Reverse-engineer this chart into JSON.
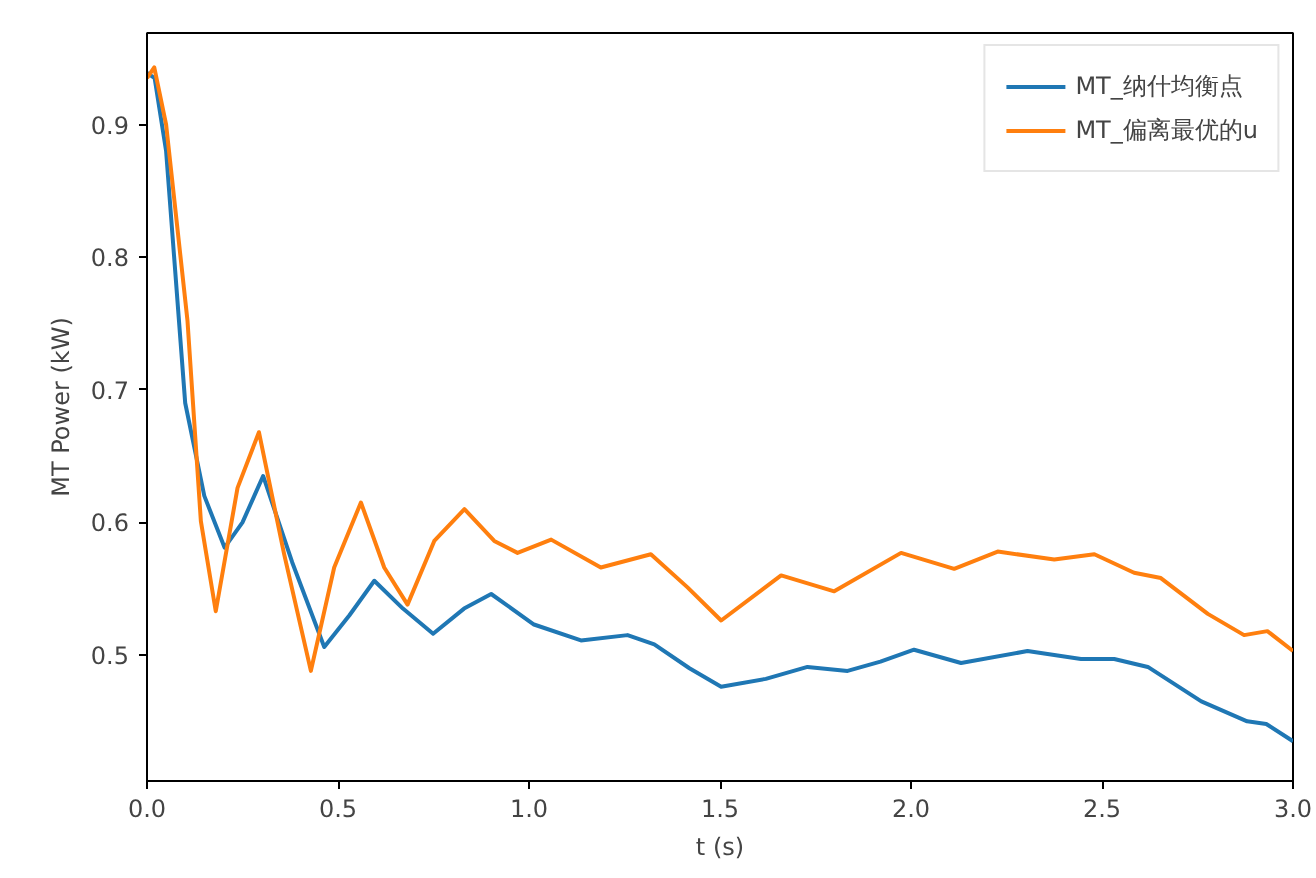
{
  "chart_data": {
    "type": "line",
    "xlabel": "t (s)",
    "ylabel": "MT Power (kW)",
    "xlim": [
      0,
      3.0
    ],
    "ylim": [
      0.405,
      0.969
    ],
    "xticks": [
      {
        "value": 0,
        "label": "0.0"
      },
      0.5,
      {
        "value": 1,
        "label": "1.0"
      },
      1.5,
      {
        "value": 2,
        "label": "2.0"
      },
      2.5,
      {
        "value": 3,
        "label": "3.0"
      }
    ],
    "yticks": [
      0.5,
      0.6,
      0.7,
      0.8,
      0.9
    ],
    "grid": false,
    "legend": "top right",
    "marker": "none",
    "line_style": "solid",
    "series": [
      {
        "name": "MT_纳什均衡点",
        "color": "#1f77b4",
        "x": [
          0,
          0.02,
          0.05,
          0.1,
          0.15,
          0.203,
          0.25,
          0.304,
          0.38,
          0.464,
          0.53,
          0.595,
          0.67,
          0.749,
          0.83,
          0.901,
          1.013,
          1.136,
          1.258,
          1.328,
          1.42,
          1.503,
          1.62,
          1.729,
          1.834,
          1.92,
          2.008,
          2.131,
          2.305,
          2.445,
          2.532,
          2.62,
          2.76,
          2.88,
          2.93,
          3.0
        ],
        "values": [
          0.939,
          0.935,
          0.88,
          0.69,
          0.62,
          0.581,
          0.6,
          0.635,
          0.57,
          0.506,
          0.53,
          0.556,
          0.535,
          0.516,
          0.535,
          0.546,
          0.523,
          0.511,
          0.515,
          0.508,
          0.49,
          0.476,
          0.482,
          0.491,
          0.488,
          0.495,
          0.504,
          0.494,
          0.503,
          0.497,
          0.497,
          0.491,
          0.465,
          0.45,
          0.448,
          0.435
        ]
      },
      {
        "name": "MT_偏离最优的u",
        "color": "#ff7f0e",
        "x": [
          0,
          0.019,
          0.05,
          0.106,
          0.141,
          0.18,
          0.237,
          0.293,
          0.359,
          0.429,
          0.49,
          0.56,
          0.621,
          0.682,
          0.752,
          0.831,
          0.909,
          0.97,
          1.058,
          1.188,
          1.319,
          1.415,
          1.503,
          1.66,
          1.799,
          1.974,
          2.113,
          2.227,
          2.375,
          2.48,
          2.584,
          2.654,
          2.777,
          2.872,
          2.933,
          3.0
        ],
        "values": [
          0.935,
          0.943,
          0.9,
          0.752,
          0.601,
          0.533,
          0.626,
          0.668,
          0.576,
          0.488,
          0.566,
          0.615,
          0.566,
          0.538,
          0.586,
          0.61,
          0.586,
          0.577,
          0.587,
          0.566,
          0.576,
          0.551,
          0.526,
          0.56,
          0.548,
          0.577,
          0.565,
          0.578,
          0.572,
          0.576,
          0.562,
          0.558,
          0.531,
          0.515,
          0.518,
          0.503
        ]
      }
    ]
  }
}
